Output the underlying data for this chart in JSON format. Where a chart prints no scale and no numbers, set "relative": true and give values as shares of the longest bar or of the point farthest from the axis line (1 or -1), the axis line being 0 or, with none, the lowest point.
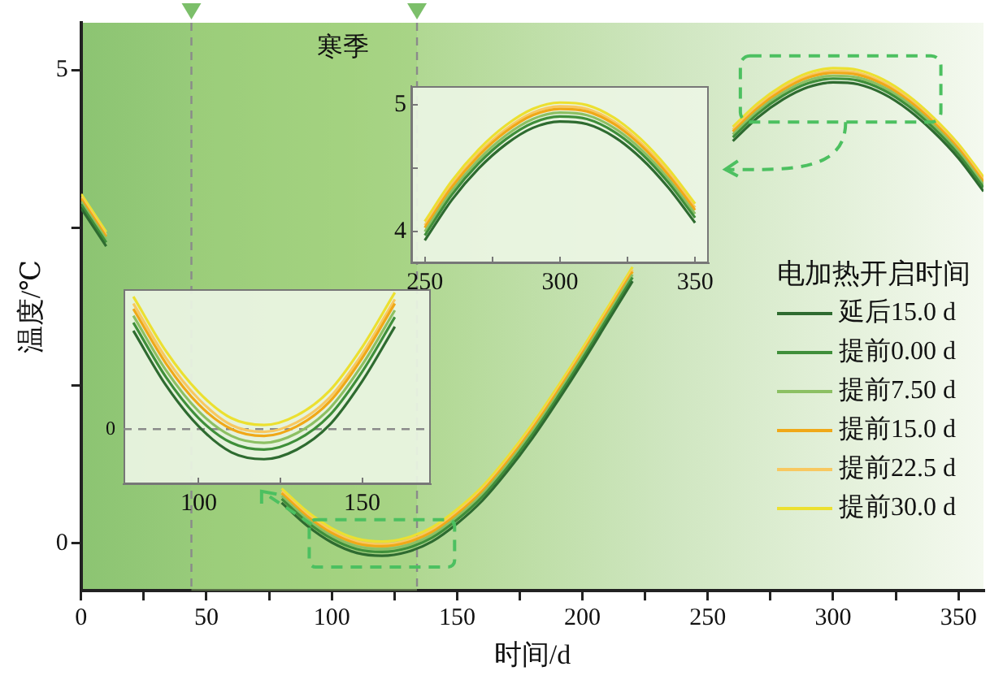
{
  "chart_data": [
    {
      "type": "line",
      "xlabel": "时间/d",
      "ylabel": "温度/℃",
      "legend": "right",
      "legend_title": "电加热开启时间",
      "x": [
        0,
        10,
        20,
        30,
        40,
        50,
        60,
        70,
        80,
        90,
        100,
        110,
        120,
        130,
        140,
        150,
        160,
        170,
        180,
        190,
        200,
        210,
        220,
        230,
        240,
        250,
        260,
        270,
        280,
        290,
        300,
        310,
        320,
        330,
        340,
        350,
        360
      ],
      "xlim": [
        0,
        360
      ],
      "ylim": [
        -0.5,
        5.5
      ],
      "xticks": [
        0,
        {
          "value": 25,
          "label": null
        },
        50,
        {
          "value": 75,
          "label": null
        },
        100,
        {
          "value": 125,
          "label": null
        },
        150,
        {
          "value": 175,
          "label": null
        },
        200,
        {
          "value": 225,
          "label": null
        },
        250,
        {
          "value": 275,
          "label": null
        },
        300,
        {
          "value": 325,
          "label": null
        },
        350
      ],
      "yticks": [
        0,
        {
          "value": 1.667,
          "label": null
        },
        {
          "value": 3.333,
          "label": null
        },
        5
      ],
      "ref_lines": [
        {
          "axis": "x",
          "value": 44,
          "line_style": "dashed",
          "color": "#8a8a8a"
        },
        {
          "axis": "x",
          "value": 134,
          "line_style": "dashed",
          "color": "#8a8a8a"
        }
      ],
      "bands": [
        {
          "axis": "x",
          "from": 44,
          "to": 134,
          "label": "寒季",
          "color": "#9fd07a"
        }
      ],
      "series": [
        {
          "name": "延后15.0 d",
          "color": "#2e6b30",
          "values": [
            3.54,
            3.14,
            null,
            null,
            null,
            null,
            null,
            null,
            0.43,
            0.19,
            0.01,
            -0.1,
            -0.13,
            -0.09,
            0.02,
            0.21,
            0.45,
            0.76,
            1.11,
            1.5,
            1.91,
            2.34,
            2.77,
            null,
            null,
            null,
            4.25,
            4.5,
            4.69,
            4.82,
            4.87,
            4.85,
            4.75,
            4.58,
            4.35,
            4.07,
            3.72
          ]
        },
        {
          "name": "提前0.00 d",
          "color": "#3f8f3a",
          "values": [
            3.58,
            3.18,
            null,
            null,
            null,
            null,
            null,
            null,
            0.47,
            0.23,
            0.05,
            -0.06,
            -0.09,
            -0.05,
            0.06,
            0.25,
            0.49,
            0.8,
            1.15,
            1.54,
            1.95,
            2.38,
            2.81,
            null,
            null,
            null,
            4.29,
            4.54,
            4.73,
            4.86,
            4.91,
            4.89,
            4.79,
            4.62,
            4.39,
            4.11,
            3.76
          ]
        },
        {
          "name": "提前7.50 d",
          "color": "#8cc063",
          "values": [
            3.61,
            3.21,
            null,
            null,
            null,
            null,
            null,
            null,
            0.5,
            0.26,
            0.08,
            -0.03,
            -0.06,
            -0.02,
            0.09,
            0.28,
            0.52,
            0.83,
            1.18,
            1.57,
            1.98,
            2.41,
            2.84,
            null,
            null,
            null,
            4.32,
            4.57,
            4.76,
            4.89,
            4.94,
            4.92,
            4.82,
            4.65,
            4.42,
            4.14,
            3.79
          ]
        },
        {
          "name": "提前15.0 d",
          "color": "#f0a818",
          "values": [
            3.64,
            3.24,
            null,
            null,
            null,
            null,
            null,
            null,
            0.53,
            0.29,
            0.11,
            0.0,
            -0.03,
            0.01,
            0.12,
            0.31,
            0.55,
            0.86,
            1.21,
            1.6,
            2.01,
            2.44,
            2.87,
            null,
            null,
            null,
            4.35,
            4.6,
            4.79,
            4.92,
            4.97,
            4.95,
            4.85,
            4.68,
            4.45,
            4.17,
            3.82
          ]
        },
        {
          "name": "提前22.5 d",
          "color": "#f8c860",
          "values": [
            3.66,
            3.26,
            null,
            null,
            null,
            null,
            null,
            null,
            0.55,
            0.31,
            0.13,
            0.02,
            -0.01,
            0.03,
            0.14,
            0.33,
            0.57,
            0.88,
            1.23,
            1.62,
            2.03,
            2.46,
            2.89,
            null,
            null,
            null,
            4.37,
            4.62,
            4.81,
            4.94,
            4.99,
            4.97,
            4.87,
            4.7,
            4.47,
            4.19,
            3.84
          ]
        },
        {
          "name": "提前30.0 d",
          "color": "#ece030",
          "values": [
            3.69,
            3.29,
            null,
            null,
            null,
            null,
            null,
            null,
            0.58,
            0.34,
            0.16,
            0.05,
            0.02,
            0.06,
            0.17,
            0.36,
            0.6,
            0.91,
            1.26,
            1.65,
            2.06,
            2.49,
            2.92,
            null,
            null,
            null,
            4.4,
            4.65,
            4.84,
            4.97,
            5.02,
            5.0,
            4.9,
            4.73,
            4.5,
            4.22,
            3.87
          ]
        }
      ]
    },
    {
      "type": "line",
      "x": [
        250,
        260,
        270,
        280,
        290,
        300,
        310,
        320,
        330,
        340,
        350
      ],
      "xlim": [
        245,
        355
      ],
      "ylim": [
        3.75,
        5.15
      ],
      "xticks": [
        250,
        {
          "value": 275,
          "label": null
        },
        300,
        {
          "value": 325,
          "label": null
        },
        350
      ],
      "yticks": [
        4,
        {
          "value": 4.5,
          "label": null
        },
        5
      ],
      "series": [
        {
          "color": "#2e6b30",
          "values": [
            3.93,
            4.25,
            4.5,
            4.69,
            4.82,
            4.87,
            4.85,
            4.75,
            4.58,
            4.35,
            4.07
          ]
        },
        {
          "color": "#3f8f3a",
          "values": [
            3.97,
            4.29,
            4.54,
            4.73,
            4.86,
            4.91,
            4.89,
            4.79,
            4.62,
            4.39,
            4.11
          ]
        },
        {
          "color": "#8cc063",
          "values": [
            4.0,
            4.32,
            4.57,
            4.76,
            4.89,
            4.94,
            4.92,
            4.82,
            4.65,
            4.42,
            4.14
          ]
        },
        {
          "color": "#f0a818",
          "values": [
            4.03,
            4.35,
            4.6,
            4.79,
            4.92,
            4.97,
            4.95,
            4.85,
            4.68,
            4.45,
            4.17
          ]
        },
        {
          "color": "#f8c860",
          "values": [
            4.05,
            4.37,
            4.62,
            4.81,
            4.94,
            4.99,
            4.97,
            4.87,
            4.7,
            4.47,
            4.19
          ]
        },
        {
          "color": "#ece030",
          "values": [
            4.08,
            4.4,
            4.65,
            4.84,
            4.97,
            5.02,
            5.0,
            4.9,
            4.73,
            4.5,
            4.22
          ]
        }
      ]
    },
    {
      "type": "line",
      "relative": true,
      "x": [
        80,
        90,
        100,
        110,
        120,
        130,
        140,
        150,
        160
      ],
      "xlim": [
        77,
        171
      ],
      "xticks": [
        100,
        {
          "value": 125,
          "label": null
        },
        150
      ],
      "ref_lines": [
        {
          "axis": "y",
          "value": 0,
          "line_style": "dashed",
          "color": "#8a8a8a"
        }
      ],
      "annotations": [
        "0"
      ],
      "series": [
        {
          "color": "#2e6b30",
          "values": [
            0.72,
            0.32,
            0.02,
            -0.17,
            -0.22,
            -0.15,
            0.03,
            0.35,
            0.75
          ]
        },
        {
          "color": "#3f8f3a",
          "values": [
            0.78,
            0.38,
            0.08,
            -0.1,
            -0.15,
            -0.08,
            0.1,
            0.42,
            0.82
          ]
        },
        {
          "color": "#8cc063",
          "values": [
            0.83,
            0.43,
            0.13,
            -0.05,
            -0.1,
            -0.03,
            0.15,
            0.47,
            0.87
          ]
        },
        {
          "color": "#f0a818",
          "values": [
            0.88,
            0.48,
            0.18,
            0.0,
            -0.05,
            0.02,
            0.2,
            0.52,
            0.92
          ]
        },
        {
          "color": "#f8c860",
          "values": [
            0.92,
            0.52,
            0.22,
            0.03,
            -0.02,
            0.05,
            0.23,
            0.55,
            0.95
          ]
        },
        {
          "color": "#ece030",
          "values": [
            0.97,
            0.57,
            0.27,
            0.08,
            0.03,
            0.1,
            0.28,
            0.6,
            1
          ]
        }
      ]
    }
  ]
}
